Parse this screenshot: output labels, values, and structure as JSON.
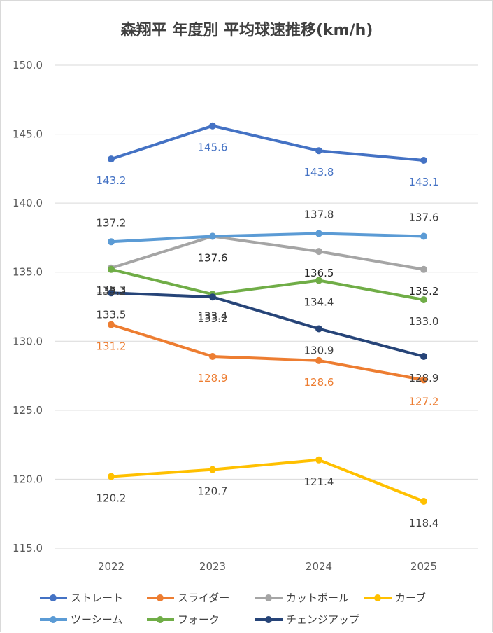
{
  "chart_data": {
    "type": "line",
    "title": "森翔平 年度別 平均球速推移(km/h)",
    "categories": [
      "2022",
      "2023",
      "2024",
      "2025"
    ],
    "ylim": [
      115,
      150
    ],
    "y_ticks": [
      "115.0",
      "120.0",
      "125.0",
      "130.0",
      "135.0",
      "140.0",
      "145.0",
      "150.0"
    ],
    "grid": true,
    "legend_position": "bottom",
    "series": [
      {
        "name": "ストレート",
        "color": "#4472C4",
        "values": [
          143.2,
          145.6,
          143.8,
          143.1
        ],
        "labels": [
          "143.2",
          "145.6",
          "143.8",
          "143.1"
        ],
        "label_color": "#4472C4",
        "label_pos": "below"
      },
      {
        "name": "スライダー",
        "color": "#ED7D31",
        "values": [
          131.2,
          128.9,
          128.6,
          127.2
        ],
        "labels": [
          "131.2",
          "128.9",
          "128.6",
          "127.2"
        ],
        "label_color": "#ED7D31",
        "label_pos": "below"
      },
      {
        "name": "カットボール",
        "color": "#A5A5A5",
        "values": [
          135.3,
          137.6,
          136.5,
          135.2
        ],
        "labels": [
          "135.3",
          "137.6",
          "136.5",
          "135.2"
        ],
        "label_color": "#262626",
        "label_pos": "below"
      },
      {
        "name": "カーブ",
        "color": "#FFC000",
        "values": [
          120.2,
          120.7,
          121.4,
          118.4
        ],
        "labels": [
          "120.2",
          "120.7",
          "121.4",
          "118.4"
        ],
        "label_color": "#404040",
        "label_pos": "below"
      },
      {
        "name": "ツーシーム",
        "color": "#5B9BD5",
        "values": [
          137.2,
          137.6,
          137.8,
          137.6
        ],
        "labels": [
          "137.2",
          "",
          "137.8",
          "137.6"
        ],
        "label_color": "#404040",
        "label_pos": "above"
      },
      {
        "name": "フォーク",
        "color": "#70AD47",
        "values": [
          135.2,
          133.4,
          134.4,
          133.0
        ],
        "labels": [
          "135.2",
          "133.4",
          "134.4",
          "133.0"
        ],
        "label_color": "#404040",
        "label_pos": "below"
      },
      {
        "name": "チェンジアップ",
        "color": "#264478",
        "values": [
          133.5,
          133.2,
          130.9,
          128.9
        ],
        "labels": [
          "133.5",
          "133.2",
          "130.9",
          "128.9"
        ],
        "label_color": "#404040",
        "label_pos": "below"
      }
    ]
  }
}
